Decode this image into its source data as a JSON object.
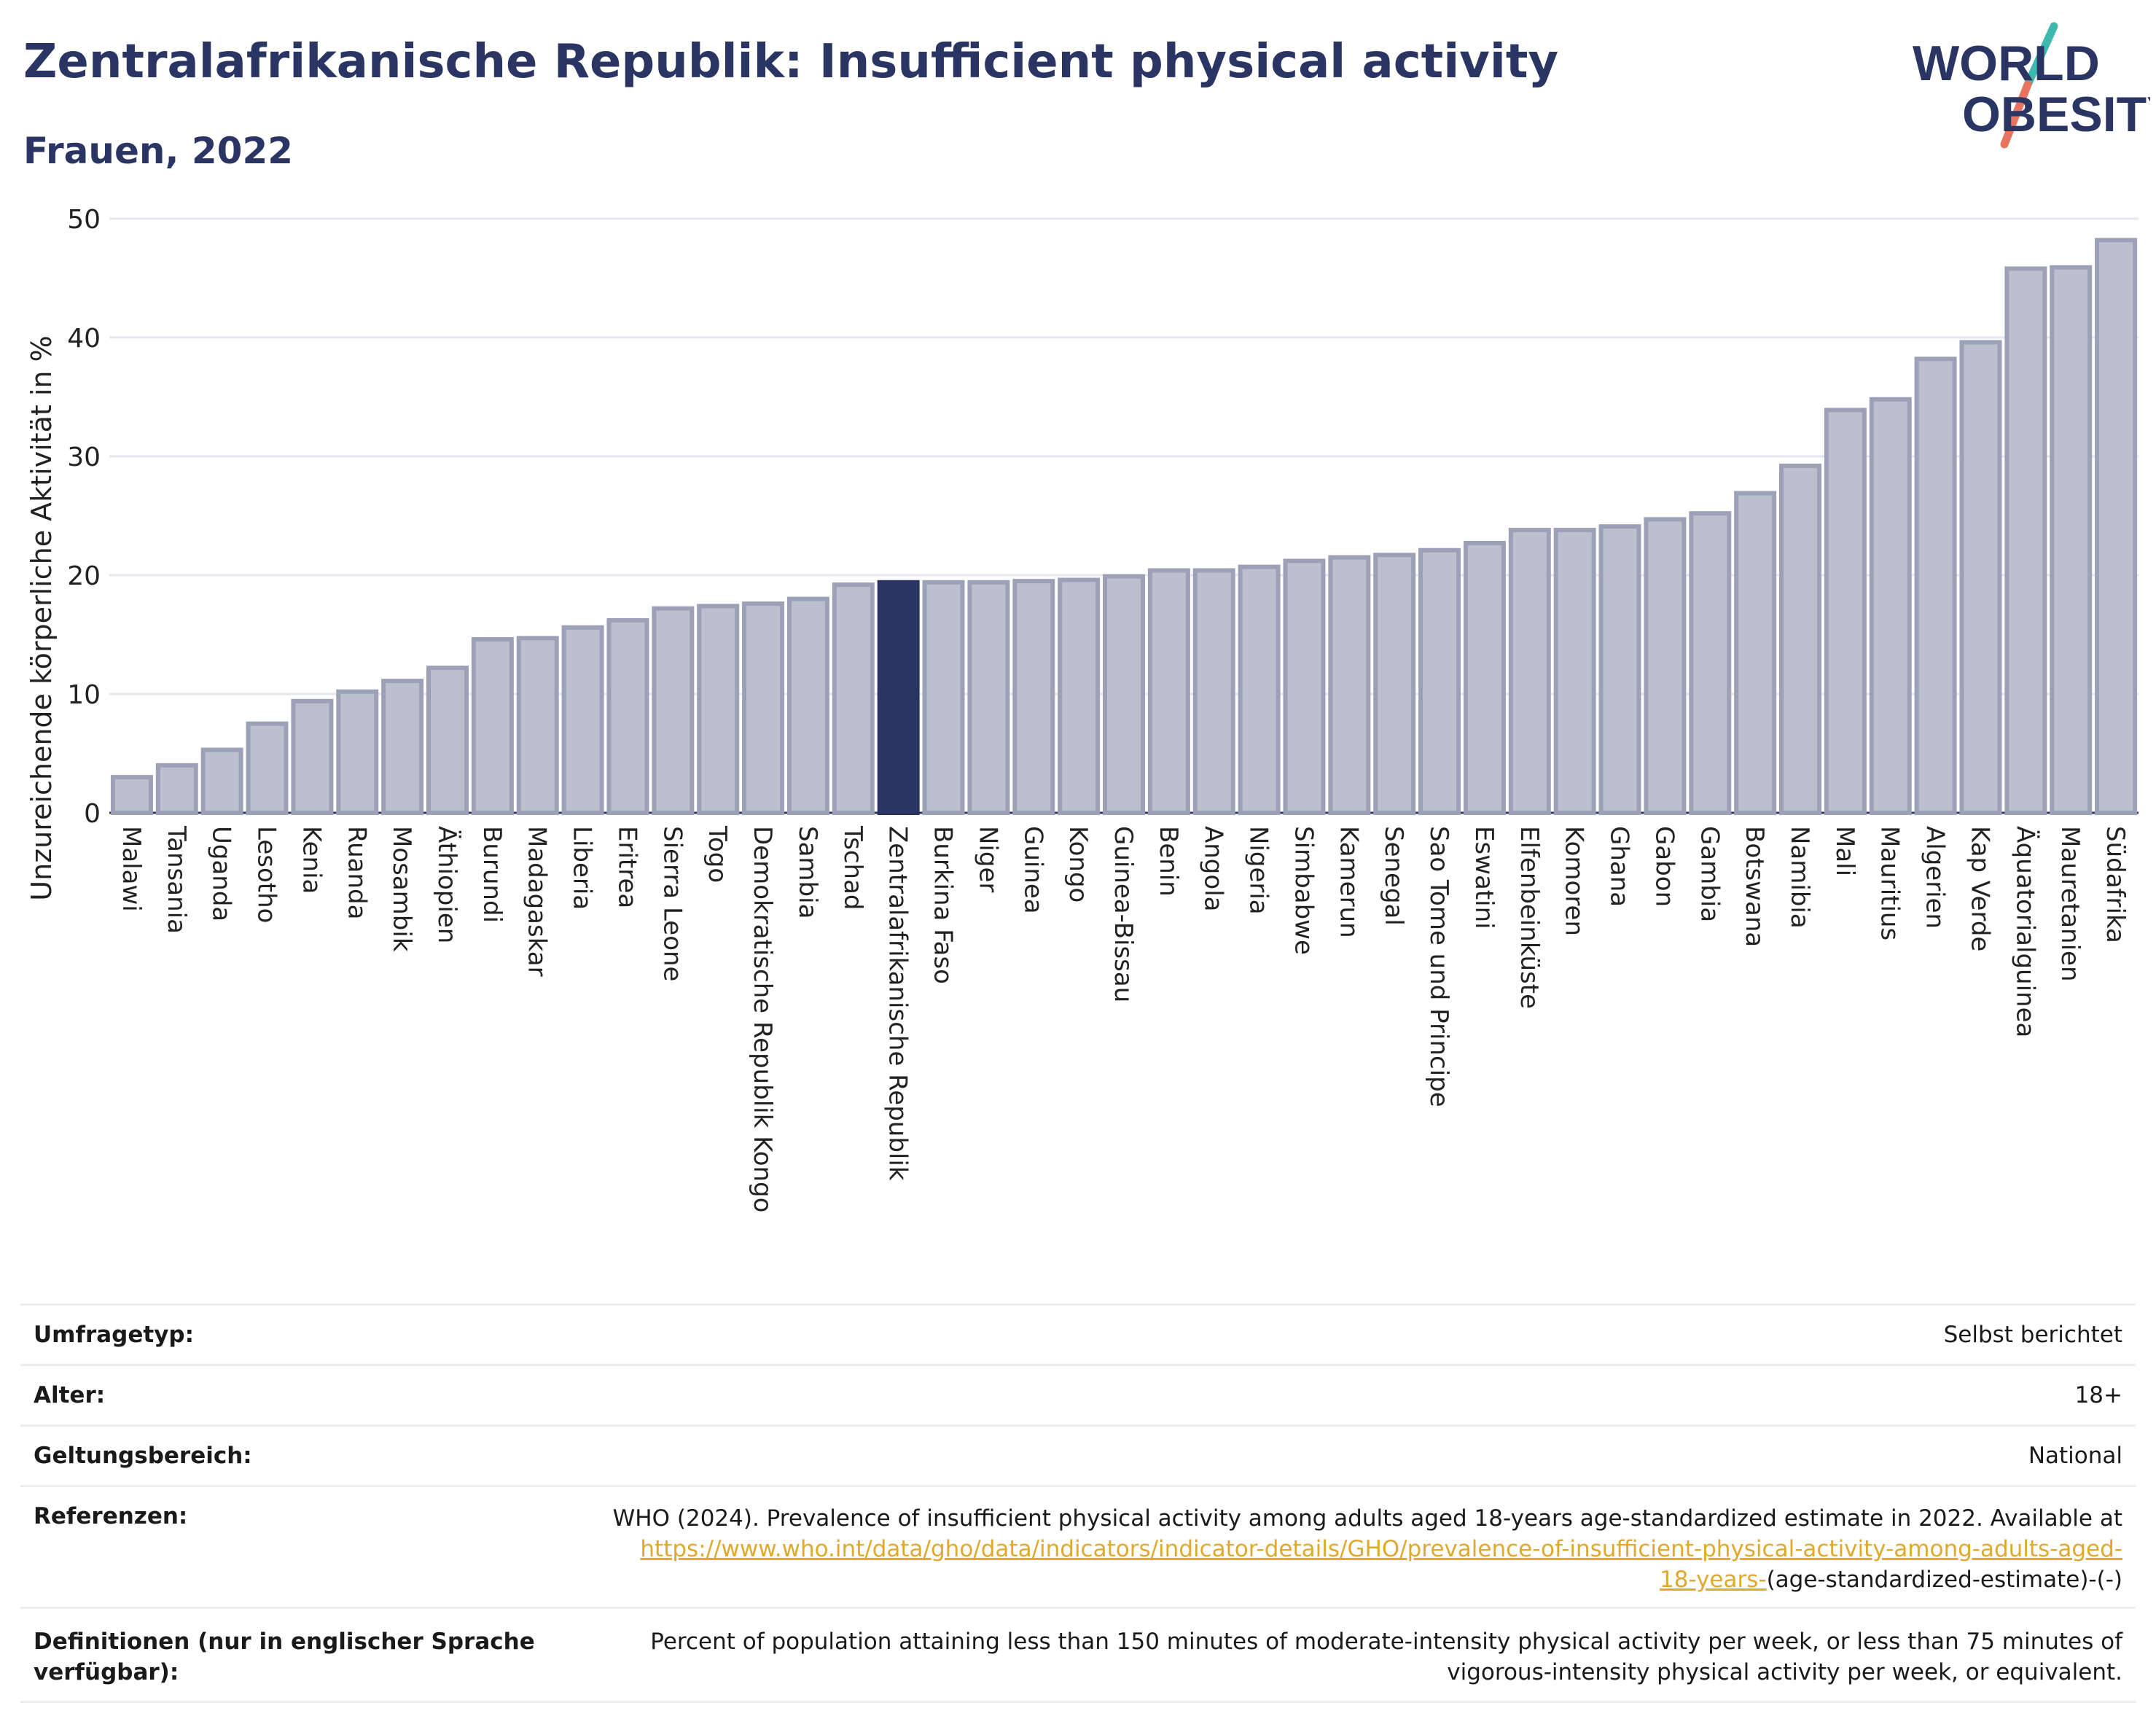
{
  "header": {
    "title": "Zentralafrikanische Republik: Insufficient physical activity",
    "subtitle": "Frauen, 2022"
  },
  "logo": {
    "line1": "WORLD",
    "line2": "OBESITY"
  },
  "colors": {
    "bar": "#bcc0ce",
    "bar_stroke": "#9ca1b8",
    "highlight": "#2a3563",
    "grid": "#e6e7ec",
    "link": "#e1a92b",
    "title": "#2a3563"
  },
  "chart_data": {
    "type": "bar",
    "ylabel": "Unzureichende körperliche Aktivität in %",
    "ylim": [
      0,
      50
    ],
    "yticks": [
      0,
      10,
      20,
      30,
      40,
      50
    ],
    "highlight": "Zentralafrikanische Republik",
    "categories": [
      "Malawi",
      "Tansania",
      "Uganda",
      "Lesotho",
      "Kenia",
      "Ruanda",
      "Mosambik",
      "Äthiopien",
      "Burundi",
      "Madagaskar",
      "Liberia",
      "Eritrea",
      "Sierra Leone",
      "Togo",
      "Demokratische Republik Kongo",
      "Sambia",
      "Tschad",
      "Zentralafrikanische Republik",
      "Burkina Faso",
      "Niger",
      "Guinea",
      "Kongo",
      "Guinea-Bissau",
      "Benin",
      "Angola",
      "Nigeria",
      "Simbabwe",
      "Kamerun",
      "Senegal",
      "Sao Tome und Principe",
      "Eswatini",
      "Elfenbeinküste",
      "Komoren",
      "Ghana",
      "Gabon",
      "Gambia",
      "Botswana",
      "Namibia",
      "Mali",
      "Mauritius",
      "Algerien",
      "Kap Verde",
      "Äquatorialguinea",
      "Mauretanien",
      "Südafrika"
    ],
    "values": [
      3.0,
      4.0,
      5.3,
      7.5,
      9.4,
      10.2,
      11.1,
      12.2,
      14.6,
      14.7,
      15.6,
      16.2,
      17.2,
      17.4,
      17.6,
      18.0,
      19.2,
      19.4,
      19.4,
      19.4,
      19.5,
      19.6,
      19.9,
      20.4,
      20.4,
      20.7,
      21.2,
      21.5,
      21.7,
      22.1,
      22.7,
      23.8,
      23.8,
      24.1,
      24.7,
      25.2,
      26.9,
      29.2,
      33.9,
      34.8,
      38.2,
      39.6,
      45.8,
      45.9,
      48.2
    ]
  },
  "info": {
    "survey_label": "Umfragetyp:",
    "survey_value": "Selbst berichtet",
    "age_label": "Alter:",
    "age_value": "18+",
    "scope_label": "Geltungsbereich:",
    "scope_value": "National",
    "ref_label": "Referenzen:",
    "ref_text": "WHO (2024). Prevalence of insufficient physical activity among adults aged 18-years age-standardized estimate in 2022. Available at",
    "ref_link_1": "https://www.who.int/data/gho/data/indicators/indicator-details/GHO/prevalence-of-insufficient-physical-activity-among-adults-aged-",
    "ref_link_2": "18-years-",
    "ref_tail": "(age-standardized-estimate)-(-)",
    "def_label": "Definitionen (nur in englischer Sprache verfügbar):",
    "def_text": "Percent of population attaining less than 150 minutes of moderate-intensity physical activity per week, or less than 75 minutes of vigorous-intensity physical activity per week, or equivalent."
  }
}
